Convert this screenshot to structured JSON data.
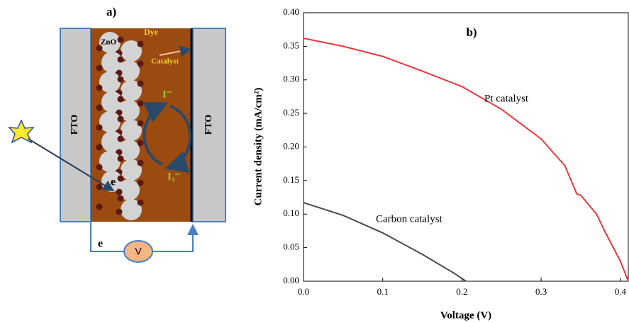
{
  "diagram": {
    "panel_label": "a)",
    "dye": "Dye",
    "zno": "ZnO",
    "catalyst": "Catalyst",
    "fto_left": "FTO",
    "fto_right": "FTO",
    "iodide": "I⁻",
    "triiodide": "I₃⁻",
    "electron_cell": "e",
    "electron_circuit": "e",
    "voltmeter": "V"
  },
  "chart_data": {
    "type": "line",
    "title": "b)",
    "xlabel": "Voltage (V)",
    "ylabel": "Current density (mA/cm²)",
    "xlim": [
      0,
      0.41
    ],
    "ylim": [
      0,
      0.4
    ],
    "xticks": [
      {
        "value": 0,
        "label": "0.0"
      },
      0.1,
      0.2,
      0.3,
      0.4
    ],
    "yticks": [
      {
        "value": 0,
        "label": "0.00"
      },
      {
        "value": 0.05,
        "label": "0.05"
      },
      {
        "value": 0.1,
        "label": "0.10"
      },
      {
        "value": 0.15,
        "label": "0.15"
      },
      {
        "value": 0.2,
        "label": "0.20"
      },
      {
        "value": 0.25,
        "label": "0.25"
      },
      {
        "value": 0.3,
        "label": "0.30"
      },
      {
        "value": 0.35,
        "label": "0.35"
      },
      {
        "value": 0.4,
        "label": "0.40"
      }
    ],
    "series": [
      {
        "name": "Pt catalyst",
        "color": "#e8383d",
        "x": [
          0,
          0.05,
          0.1,
          0.15,
          0.2,
          0.25,
          0.3,
          0.33,
          0.345,
          0.35,
          0.37,
          0.38,
          0.4,
          0.41
        ],
        "values": [
          0.362,
          0.35,
          0.335,
          0.313,
          0.29,
          0.256,
          0.212,
          0.172,
          0.13,
          0.128,
          0.1,
          0.075,
          0.03,
          0
        ]
      },
      {
        "name": "Carbon catalyst",
        "color": "#4a4a4a",
        "x": [
          0,
          0.05,
          0.1,
          0.15,
          0.19,
          0.205
        ],
        "values": [
          0.117,
          0.098,
          0.072,
          0.04,
          0.012,
          0
        ]
      }
    ]
  }
}
